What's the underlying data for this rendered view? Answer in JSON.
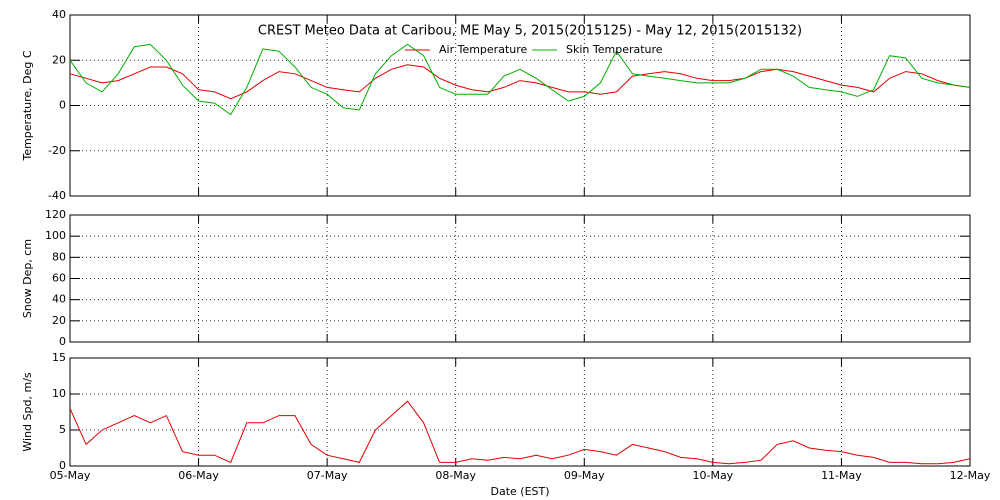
{
  "chart_data": [
    {
      "type": "line",
      "title": "CREST Meteo Data at Caribou, ME   May  5, 2015(2015125) - May 12, 2015(2015132)",
      "ylabel": "Temperature, Deg C",
      "ylim": [
        -40,
        40
      ],
      "yticks": [
        -40,
        -20,
        0,
        20,
        40
      ],
      "xlim": [
        0,
        7
      ],
      "grid": true,
      "legend_position": "top",
      "x": [
        0,
        0.125,
        0.25,
        0.375,
        0.5,
        0.625,
        0.75,
        0.875,
        1,
        1.125,
        1.25,
        1.375,
        1.5,
        1.625,
        1.75,
        1.875,
        2,
        2.125,
        2.25,
        2.375,
        2.5,
        2.625,
        2.75,
        2.875,
        3,
        3.125,
        3.25,
        3.375,
        3.5,
        3.625,
        3.75,
        3.875,
        4,
        4.125,
        4.25,
        4.375,
        4.5,
        4.625,
        4.75,
        4.875,
        5,
        5.125,
        5.25,
        5.375,
        5.5,
        5.625,
        5.75,
        5.875,
        6,
        6.125,
        6.25,
        6.375,
        6.5,
        6.625,
        6.75,
        6.875,
        7
      ],
      "series": [
        {
          "name": "Air Temperature",
          "color": "#e00000",
          "values": [
            14,
            12,
            10,
            11,
            14,
            17,
            17,
            14,
            7,
            6,
            3,
            6,
            11,
            15,
            14,
            11,
            8,
            7,
            6,
            12,
            16,
            18,
            17,
            12,
            9,
            7,
            6,
            8,
            11,
            10,
            8,
            6,
            6,
            5,
            6,
            13,
            14,
            15,
            14,
            12,
            11,
            11,
            12,
            15,
            16,
            15,
            13,
            11,
            9,
            8,
            6,
            12,
            15,
            14,
            11,
            9,
            8
          ]
        },
        {
          "name": "Skin Temperature",
          "color": "#00b000",
          "values": [
            20,
            10,
            6,
            14,
            26,
            27,
            20,
            9,
            2,
            1,
            -4,
            8,
            25,
            24,
            17,
            8,
            5,
            -1,
            -2,
            14,
            22,
            27,
            22,
            8,
            5,
            5,
            5,
            13,
            16,
            12,
            7,
            2,
            4,
            10,
            24,
            14,
            13,
            12,
            11,
            10,
            10,
            10,
            12,
            16,
            16,
            13,
            8,
            7,
            6,
            4,
            7,
            22,
            21,
            12,
            10,
            9,
            8
          ]
        }
      ]
    },
    {
      "type": "line",
      "ylabel": "Snow Dep, cm",
      "ylim": [
        0,
        120
      ],
      "yticks": [
        0,
        20,
        40,
        60,
        80,
        100,
        120
      ],
      "xlim": [
        0,
        7
      ],
      "grid": true
    },
    {
      "type": "line",
      "ylabel": "Wind Spd, m/s",
      "xlabel": "Date (EST)",
      "ylim": [
        0,
        15
      ],
      "yticks": [
        0,
        5,
        10,
        15
      ],
      "xlim": [
        0,
        7
      ],
      "grid": true,
      "color": "#e00000",
      "xticks": [
        {
          "value": 0,
          "label": "05-May"
        },
        {
          "value": 1,
          "label": "06-May"
        },
        {
          "value": 2,
          "label": "07-May"
        },
        {
          "value": 3,
          "label": "08-May"
        },
        {
          "value": 4,
          "label": "09-May"
        },
        {
          "value": 5,
          "label": "10-May"
        },
        {
          "value": 6,
          "label": "11-May"
        },
        {
          "value": 7,
          "label": "12-May"
        }
      ],
      "x": [
        0,
        0.125,
        0.25,
        0.375,
        0.5,
        0.625,
        0.75,
        0.875,
        1,
        1.125,
        1.25,
        1.375,
        1.5,
        1.625,
        1.75,
        1.875,
        2,
        2.125,
        2.25,
        2.375,
        2.5,
        2.625,
        2.75,
        2.875,
        3,
        3.125,
        3.25,
        3.375,
        3.5,
        3.625,
        3.75,
        3.875,
        4,
        4.125,
        4.25,
        4.375,
        4.5,
        4.625,
        4.75,
        4.875,
        5,
        5.125,
        5.25,
        5.375,
        5.5,
        5.625,
        5.75,
        5.875,
        6,
        6.125,
        6.25,
        6.375,
        6.5,
        6.625,
        6.75,
        6.875,
        7
      ],
      "values": [
        8,
        3,
        5,
        6,
        7,
        6,
        7,
        2,
        1.5,
        1.5,
        0.5,
        6,
        6,
        7,
        7,
        3,
        1.5,
        1,
        0.5,
        5,
        7,
        9,
        6,
        0.5,
        0.5,
        1,
        0.8,
        1.2,
        1,
        1.5,
        1,
        1.5,
        2.3,
        2,
        1.5,
        3,
        2.5,
        2,
        1.2,
        1,
        0.5,
        0.3,
        0.5,
        0.8,
        3,
        3.5,
        2.5,
        2.2,
        2,
        1.5,
        1.2,
        0.5,
        0.5,
        0.3,
        0.3,
        0.5,
        1
      ]
    }
  ]
}
